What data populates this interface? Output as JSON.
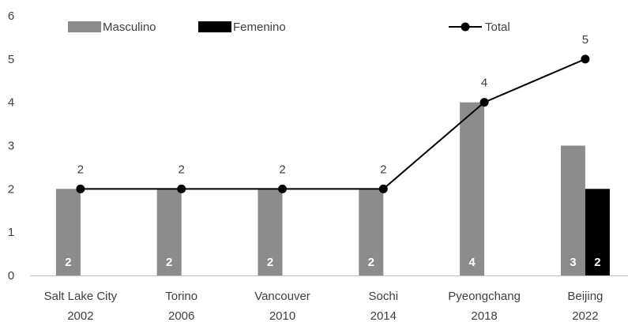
{
  "chart_data": {
    "type": "bar",
    "categories": [
      [
        "Salt Lake City",
        "2002"
      ],
      [
        "Torino",
        "2006"
      ],
      [
        "Vancouver",
        "2010"
      ],
      [
        "Sochi",
        "2014"
      ],
      [
        "Pyeongchang",
        "2018"
      ],
      [
        "Beijing",
        "2022"
      ]
    ],
    "series": [
      {
        "name": "Masculino",
        "kind": "bar",
        "color": "#8c8c8c",
        "values": [
          2,
          2,
          2,
          2,
          4,
          3
        ]
      },
      {
        "name": "Femenino",
        "kind": "bar",
        "color": "#000000",
        "values": [
          0,
          0,
          0,
          0,
          0,
          2
        ]
      },
      {
        "name": "Total",
        "kind": "line",
        "color": "#000000",
        "values": [
          2,
          2,
          2,
          2,
          4,
          5
        ]
      }
    ],
    "title": "",
    "xlabel": "",
    "ylabel": "",
    "ylim": [
      0,
      6
    ],
    "yticks": [
      0,
      1,
      2,
      3,
      4,
      5,
      6
    ],
    "grid": false,
    "legend_position": "top-left"
  }
}
